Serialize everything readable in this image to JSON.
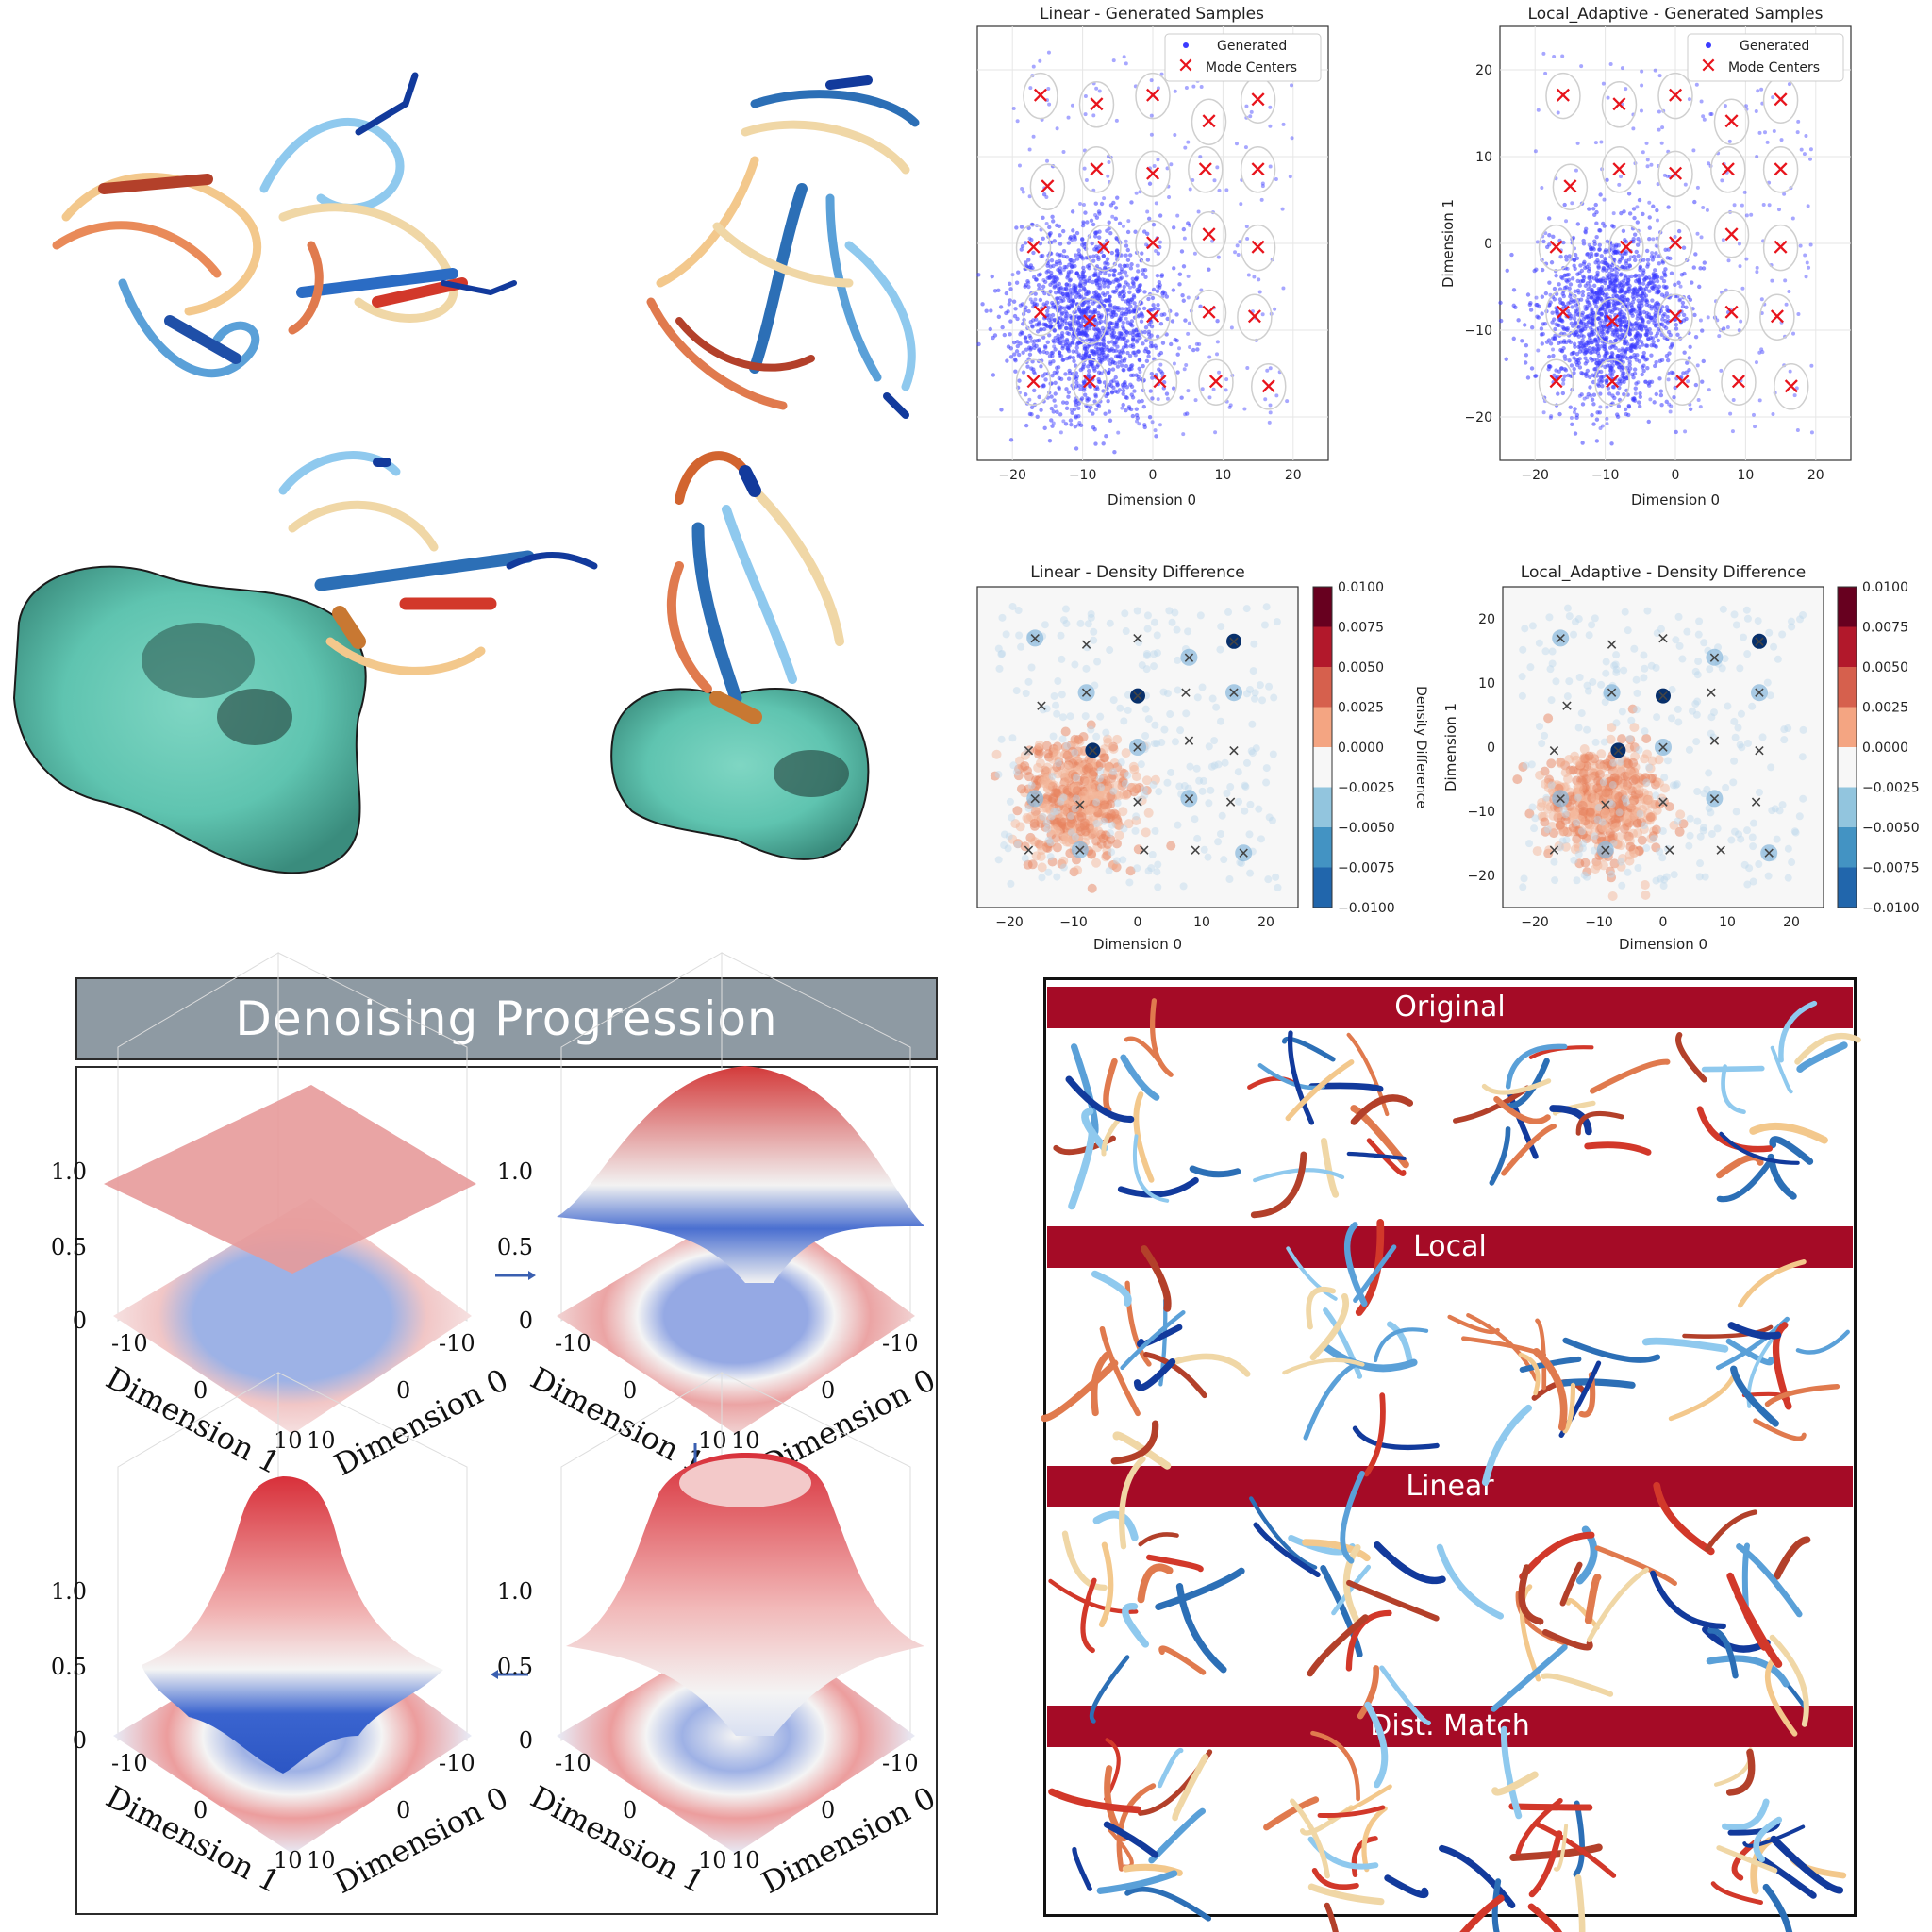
{
  "scatter_panels": [
    {
      "title": "Linear - Generated Samples",
      "xlabel": "Dimension 0",
      "ylabel": "",
      "legend": [
        "Generated",
        "Mode Centers"
      ]
    },
    {
      "title": "Local_Adaptive - Generated Samples",
      "xlabel": "Dimension 0",
      "ylabel": "Dimension 1",
      "legend": [
        "Generated",
        "Mode Centers"
      ]
    }
  ],
  "density_panels": [
    {
      "title": "Linear - Density Difference",
      "xlabel": "Dimension 0",
      "ylabel": "",
      "cbar_label": "Density Difference"
    },
    {
      "title": "Local_Adaptive - Density Difference",
      "xlabel": "Dimension 0",
      "ylabel": "Dimension 1",
      "cbar_label": ""
    }
  ],
  "chart_data": [
    {
      "type": "scatter",
      "title": "Linear - Generated Samples",
      "xlabel": "Dimension 0",
      "ylabel": "",
      "xlim": [
        -25,
        25
      ],
      "ylim": [
        -25,
        25
      ],
      "xticks": [
        -20,
        -10,
        0,
        10,
        20
      ],
      "yticks": [],
      "grid": true,
      "legend_position": "top-right",
      "series": [
        {
          "name": "Generated",
          "cluster_center": [
            -9,
            -9
          ],
          "cluster_spread": 5.5
        },
        {
          "name": "Mode Centers",
          "points": [
            [
              -16,
              17
            ],
            [
              -8,
              16
            ],
            [
              0,
              17
            ],
            [
              8,
              14
            ],
            [
              15,
              16.5
            ],
            [
              -15,
              6.5
            ],
            [
              -8,
              8.5
            ],
            [
              0,
              8
            ],
            [
              7.5,
              8.5
            ],
            [
              15,
              8.5
            ],
            [
              -17,
              -0.5
            ],
            [
              -7,
              -0.5
            ],
            [
              0,
              0
            ],
            [
              8,
              1
            ],
            [
              15,
              -0.5
            ],
            [
              -16,
              -8
            ],
            [
              -9,
              -9
            ],
            [
              0,
              -8.5
            ],
            [
              8,
              -8
            ],
            [
              14.5,
              -8.5
            ],
            [
              -17,
              -16
            ],
            [
              -9,
              -16
            ],
            [
              1,
              -16
            ],
            [
              9,
              -16
            ],
            [
              16.5,
              -16.5
            ]
          ]
        }
      ],
      "colors": {
        "Generated": "#3b3bff",
        "Mode Centers": "#e8141c"
      }
    },
    {
      "type": "scatter",
      "title": "Local_Adaptive - Generated Samples",
      "xlabel": "Dimension 0",
      "ylabel": "Dimension 1",
      "xlim": [
        -25,
        25
      ],
      "ylim": [
        -25,
        25
      ],
      "xticks": [
        -20,
        -10,
        0,
        10,
        20
      ],
      "yticks": [
        -20,
        -10,
        0,
        10,
        20
      ],
      "grid": true,
      "legend_position": "top-right",
      "series": [
        {
          "name": "Generated",
          "cluster_center": [
            -9,
            -8.5
          ],
          "cluster_spread": 5.0
        },
        {
          "name": "Mode Centers",
          "points": [
            [
              -16,
              17
            ],
            [
              -8,
              16
            ],
            [
              0,
              17
            ],
            [
              8,
              14
            ],
            [
              15,
              16.5
            ],
            [
              -15,
              6.5
            ],
            [
              -8,
              8.5
            ],
            [
              0,
              8
            ],
            [
              7.5,
              8.5
            ],
            [
              15,
              8.5
            ],
            [
              -17,
              -0.5
            ],
            [
              -7,
              -0.5
            ],
            [
              0,
              0
            ],
            [
              8,
              1
            ],
            [
              15,
              -0.5
            ],
            [
              -16,
              -8
            ],
            [
              -9,
              -9
            ],
            [
              0,
              -8.5
            ],
            [
              8,
              -8
            ],
            [
              14.5,
              -8.5
            ],
            [
              -17,
              -16
            ],
            [
              -9,
              -16
            ],
            [
              1,
              -16
            ],
            [
              9,
              -16
            ],
            [
              16.5,
              -16.5
            ]
          ]
        }
      ],
      "colors": {
        "Generated": "#3b3bff",
        "Mode Centers": "#e8141c"
      }
    },
    {
      "type": "heatmap",
      "title": "Linear - Density Difference",
      "xlabel": "Dimension 0",
      "ylabel": "",
      "xlim": [
        -25,
        25
      ],
      "ylim": [
        -25,
        25
      ],
      "xticks": [
        -20,
        -10,
        0,
        10,
        20
      ],
      "colorbar": {
        "label": "Density Difference",
        "vmin": -0.01,
        "vmax": 0.01,
        "ticks": [
          "0.0100",
          "0.0075",
          "0.0050",
          "0.0025",
          "0.0000",
          "−0.0025",
          "−0.0050",
          "−0.0075",
          "−0.0100"
        ]
      },
      "positive_region_center": [
        -9,
        -8
      ],
      "mode_markers": [
        [
          -16,
          17
        ],
        [
          -8,
          16
        ],
        [
          0,
          17
        ],
        [
          8,
          14
        ],
        [
          15,
          16.5
        ],
        [
          -15,
          6.5
        ],
        [
          -8,
          8.5
        ],
        [
          0,
          8
        ],
        [
          7.5,
          8.5
        ],
        [
          15,
          8.5
        ],
        [
          -17,
          -0.5
        ],
        [
          -7,
          -0.5
        ],
        [
          0,
          0
        ],
        [
          8,
          1
        ],
        [
          15,
          -0.5
        ],
        [
          -16,
          -8
        ],
        [
          -9,
          -9
        ],
        [
          0,
          -8.5
        ],
        [
          8,
          -8
        ],
        [
          14.5,
          -8.5
        ],
        [
          -17,
          -16
        ],
        [
          -9,
          -16
        ],
        [
          1,
          -16
        ],
        [
          9,
          -16
        ],
        [
          16.5,
          -16.5
        ]
      ]
    },
    {
      "type": "heatmap",
      "title": "Local_Adaptive - Density Difference",
      "xlabel": "Dimension 0",
      "ylabel": "Dimension 1",
      "xlim": [
        -25,
        25
      ],
      "ylim": [
        -25,
        25
      ],
      "xticks": [
        -20,
        -10,
        0,
        10,
        20
      ],
      "yticks": [
        -20,
        -10,
        0,
        10,
        20
      ],
      "colorbar": {
        "label": "",
        "vmin": -0.01,
        "vmax": 0.01,
        "ticks": [
          "0.0100",
          "0.0075",
          "0.0050",
          "0.0025",
          "0.0000",
          "−0.0025",
          "−0.0050",
          "−0.0075",
          "−0.0100"
        ]
      },
      "positive_region_center": [
        -9,
        -9
      ],
      "mode_markers": [
        [
          -16,
          17
        ],
        [
          -8,
          16
        ],
        [
          0,
          17
        ],
        [
          8,
          14
        ],
        [
          15,
          16.5
        ],
        [
          -15,
          6.5
        ],
        [
          -8,
          8.5
        ],
        [
          0,
          8
        ],
        [
          7.5,
          8.5
        ],
        [
          15,
          8.5
        ],
        [
          -17,
          -0.5
        ],
        [
          -7,
          -0.5
        ],
        [
          0,
          0
        ],
        [
          8,
          1
        ],
        [
          15,
          -0.5
        ],
        [
          -16,
          -8
        ],
        [
          -9,
          -9
        ],
        [
          0,
          -8.5
        ],
        [
          8,
          -8
        ],
        [
          14.5,
          -8.5
        ],
        [
          -17,
          -16
        ],
        [
          -9,
          -16
        ],
        [
          1,
          -16
        ],
        [
          9,
          -16
        ],
        [
          16.5,
          -16.5
        ]
      ]
    }
  ],
  "denoising": {
    "title": "Denoising Progression",
    "zticks": [
      "1.0",
      "0.5",
      "0"
    ],
    "axis_ticks_left": [
      "-10",
      "0",
      "10"
    ],
    "axis_ticks_right": [
      "-10",
      "0",
      "10"
    ],
    "xlabel": "Dimension 1",
    "ylabel": "Dimension 0"
  },
  "gallery": {
    "rows": [
      "Original",
      "Local",
      "Linear",
      "Dist. Match"
    ],
    "band_color": "#a50b26"
  },
  "colors": {
    "surface": "#5fc4b0",
    "protein_warm": "#d2462f",
    "protein_cool": "#2c6fb6"
  }
}
